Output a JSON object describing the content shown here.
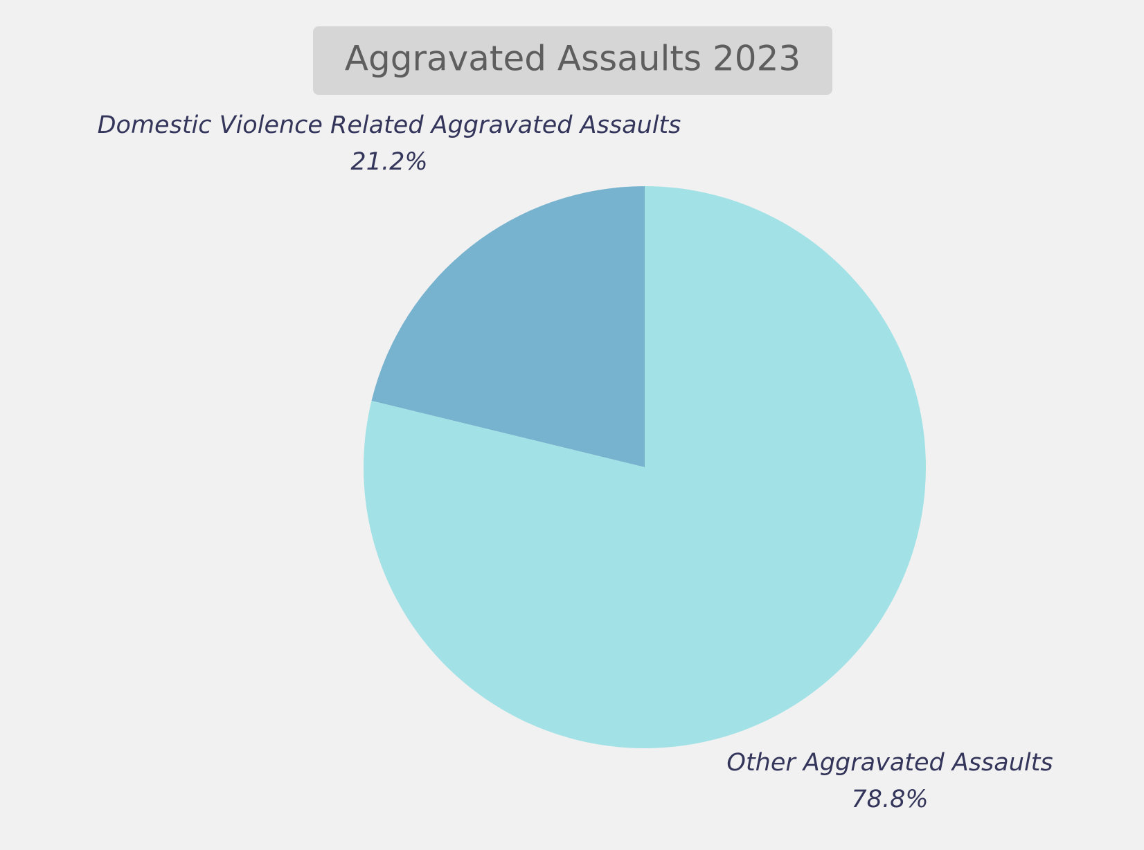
{
  "chart_data": {
    "type": "pie",
    "title": "Aggravated Assaults 2023",
    "categories": [
      "Domestic Violence Related Aggravated Assaults",
      "Other Aggravated Assaults"
    ],
    "values": [
      21.2,
      78.8
    ],
    "value_labels": [
      "21.2%",
      "78.8%"
    ],
    "colors": [
      "#77b3cf",
      "#a2e1e6"
    ]
  }
}
